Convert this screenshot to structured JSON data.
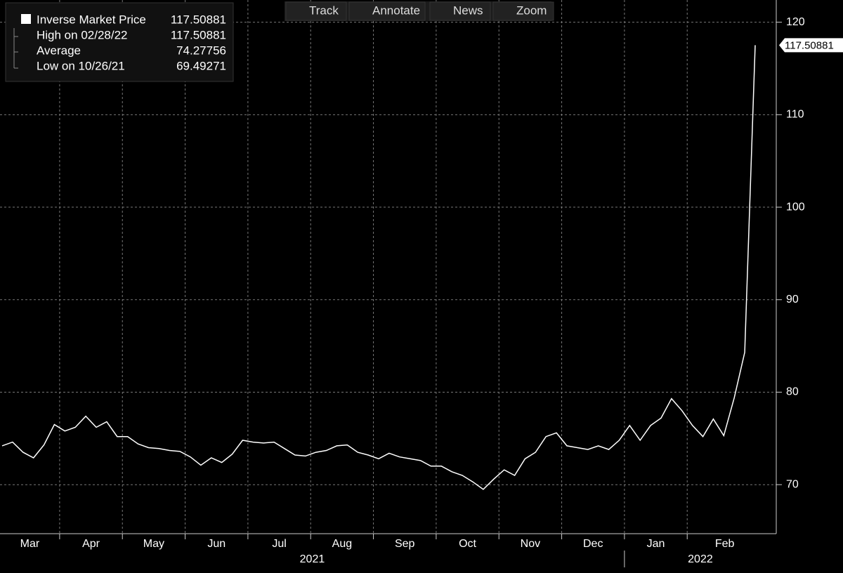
{
  "toolbar": [
    "Track",
    "Annotate",
    "News",
    "Zoom"
  ],
  "chart_data": {
    "type": "line",
    "legend": {
      "high_label": "High on 02/28/22",
      "high": 117.50881,
      "avg_label": "Average",
      "average": 74.27756,
      "low_label": "Low on 10/26/21",
      "low": 69.49271
    },
    "x": [
      "2021-03",
      "2021-03",
      "2021-03",
      "2021-03",
      "2021-03",
      "2021-03",
      "2021-04",
      "2021-04",
      "2021-04",
      "2021-04",
      "2021-04",
      "2021-04",
      "2021-05",
      "2021-05",
      "2021-05",
      "2021-05",
      "2021-05",
      "2021-05",
      "2021-06",
      "2021-06",
      "2021-06",
      "2021-06",
      "2021-06",
      "2021-06",
      "2021-07",
      "2021-07",
      "2021-07",
      "2021-07",
      "2021-07",
      "2021-07",
      "2021-08",
      "2021-08",
      "2021-08",
      "2021-08",
      "2021-08",
      "2021-08",
      "2021-09",
      "2021-09",
      "2021-09",
      "2021-09",
      "2021-09",
      "2021-09",
      "2021-10",
      "2021-10",
      "2021-10",
      "2021-10",
      "2021-10",
      "2021-10",
      "2021-11",
      "2021-11",
      "2021-11",
      "2021-11",
      "2021-11",
      "2021-11",
      "2021-12",
      "2021-12",
      "2021-12",
      "2021-12",
      "2021-12",
      "2021-12",
      "2022-01",
      "2022-01",
      "2022-01",
      "2022-01",
      "2022-01",
      "2022-01",
      "2022-02",
      "2022-02",
      "2022-02",
      "2022-02",
      "2022-02",
      "2022-02",
      "2022-02"
    ],
    "series": [
      {
        "name": "Inverse Market Price",
        "color": "#ffffff",
        "values": [
          74.2,
          74.6,
          73.5,
          72.9,
          74.3,
          76.5,
          75.8,
          76.2,
          77.4,
          76.2,
          76.8,
          75.2,
          75.2,
          74.4,
          74.0,
          73.9,
          73.7,
          73.6,
          73.0,
          72.1,
          72.9,
          72.4,
          73.3,
          74.8,
          74.6,
          74.5,
          74.6,
          73.9,
          73.2,
          73.1,
          73.5,
          73.7,
          74.2,
          74.3,
          73.5,
          73.2,
          72.8,
          73.4,
          73.0,
          72.8,
          72.6,
          72.0,
          72.0,
          71.4,
          71.0,
          70.3,
          69.49271,
          70.6,
          71.6,
          71.0,
          72.8,
          73.5,
          75.2,
          75.6,
          74.2,
          74.0,
          73.8,
          74.2,
          73.8,
          74.8,
          76.4,
          74.8,
          76.4,
          77.2,
          79.3,
          78.0,
          76.4,
          75.2,
          77.1,
          75.3,
          79.4,
          84.3,
          117.50881
        ]
      }
    ],
    "xticks": [
      {
        "value": "2021-03",
        "label": "Mar"
      },
      {
        "value": "2021-04",
        "label": "Apr"
      },
      {
        "value": "2021-05",
        "label": "May"
      },
      {
        "value": "2021-06",
        "label": "Jun"
      },
      {
        "value": "2021-07",
        "label": "Jul"
      },
      {
        "value": "2021-08",
        "label": "Aug"
      },
      {
        "value": "2021-09",
        "label": "Sep"
      },
      {
        "value": "2021-10",
        "label": "Oct"
      },
      {
        "value": "2021-11",
        "label": "Nov"
      },
      {
        "value": "2021-12",
        "label": "Dec"
      },
      {
        "value": "2022-01",
        "label": "Jan"
      },
      {
        "value": "2022-02",
        "label": "Feb"
      }
    ],
    "xyears": [
      "2021",
      "2022"
    ],
    "ylim": [
      64.7,
      122.4
    ],
    "yticks": [
      70,
      80,
      90,
      100,
      110,
      120
    ],
    "grid": true
  }
}
